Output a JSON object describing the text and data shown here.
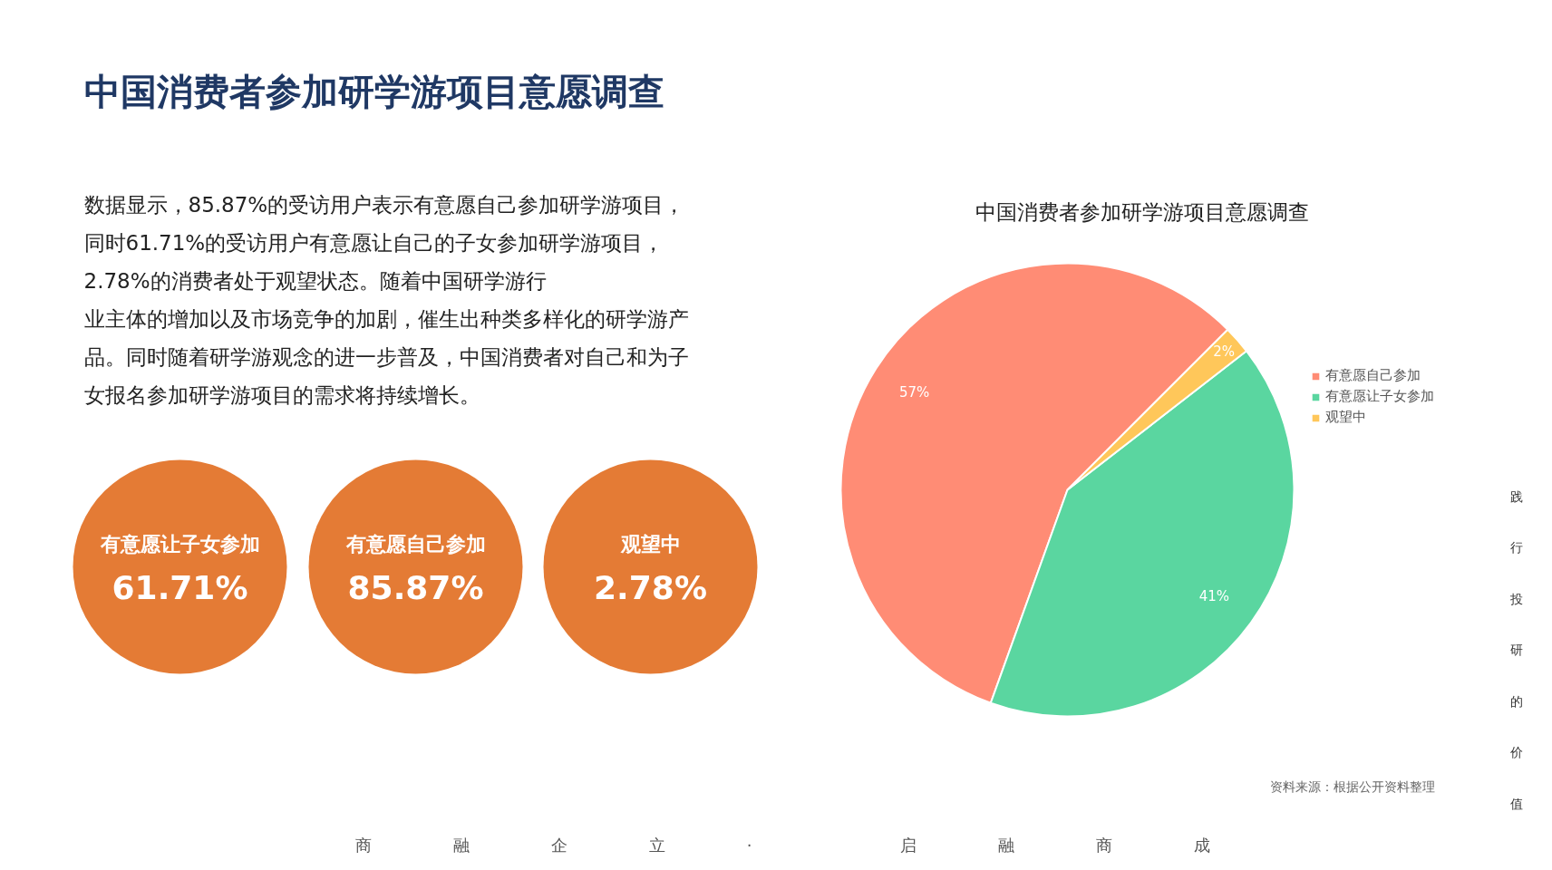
{
  "chart_data": [
    {
      "type": "other",
      "title": "中国消费者参加研学游项目意愿调查",
      "annotations": [
        "数据显示，85.87%的受访用户表示有意愿自己参加研学游项目，",
        "同时61.71%的受访用户有意愿让自己的子女参加研学游项目，",
        "2.78%的消费者处于观望状态。随着中国研学游行",
        "业主体的增加以及市场竞争的加剧，催生出种类多样化的研学游产",
        "品。同时随着研学游观念的进一步普及，中国消费者对自己和为子",
        "女报名参加研学游项目的需求将持续增长。",
        "有意愿让子女参加",
        "61.71%",
        "有意愿自己参加",
        "85.87%",
        "观望中",
        "2.78%",
        "商　　　　　融　　　　　企　　　　　立　　　　　·"
      ],
      "color": "#e47b35"
    },
    {
      "type": "pie",
      "title": "中国消费者参加研学游项目意愿调查",
      "categories": [
        "有意愿自己参加",
        "有意愿让子女参加",
        "观望中"
      ],
      "values": [
        57,
        41,
        2
      ],
      "colors": [
        "#ff8c75",
        "#5ad6a0",
        "#ffc75a"
      ],
      "value_labels": [
        "57%",
        "41%",
        "2%"
      ],
      "legend": "right",
      "annotations": [
        "资料来源：根据公开资料整理",
        "启　　　　　融　　　　　商　　　　　成",
        "践",
        "行",
        "投",
        "研",
        "的",
        "价",
        "值"
      ]
    }
  ]
}
